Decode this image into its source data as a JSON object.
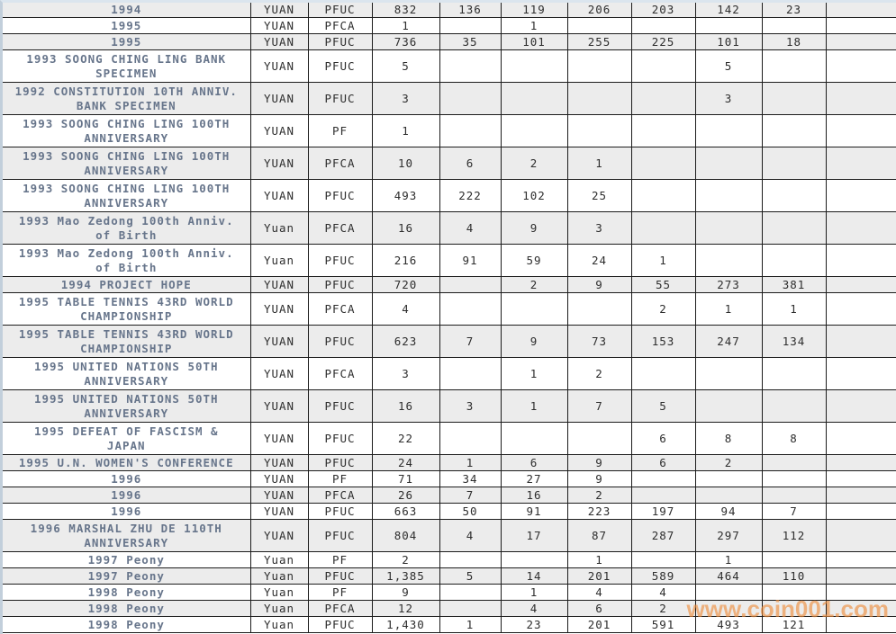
{
  "watermark": {
    "text": "www.coin001.com",
    "color": "#ef8c3a"
  },
  "colors": {
    "row_shade": "#ececec",
    "row_plain": "#ffffff",
    "grid_line": "#1c1c1c",
    "description_text": "#67758b",
    "value_text": "#2e2e2e",
    "edge_highlight": "#c2cfdb"
  },
  "table": {
    "rows": [
      {
        "cells": [
          "1994",
          "YUAN",
          "PFUC",
          "832",
          "136",
          "119",
          "206",
          "203",
          "142",
          "23",
          ""
        ]
      },
      {
        "cells": [
          "1995",
          "YUAN",
          "PFCA",
          "1",
          "",
          "1",
          "",
          "",
          "",
          "",
          ""
        ]
      },
      {
        "cells": [
          "1995",
          "YUAN",
          "PFUC",
          "736",
          "35",
          "101",
          "255",
          "225",
          "101",
          "18",
          ""
        ]
      },
      {
        "cells": [
          [
            "1993 SOONG CHING LING BANK",
            "SPECIMEN"
          ],
          "YUAN",
          "PFUC",
          "5",
          "",
          "",
          "",
          "",
          "5",
          "",
          ""
        ]
      },
      {
        "cells": [
          [
            "1992 CONSTITUTION 10TH ANNIV.",
            "BANK SPECIMEN"
          ],
          "YUAN",
          "PFUC",
          "3",
          "",
          "",
          "",
          "",
          "3",
          "",
          ""
        ]
      },
      {
        "cells": [
          [
            "1993 SOONG CHING LING 100TH",
            "ANNIVERSARY"
          ],
          "YUAN",
          "PF",
          "1",
          "",
          "",
          "",
          "",
          "",
          "",
          ""
        ]
      },
      {
        "cells": [
          [
            "1993 SOONG CHING LING 100TH",
            "ANNIVERSARY"
          ],
          "YUAN",
          "PFCA",
          "10",
          "6",
          "2",
          "1",
          "",
          "",
          "",
          ""
        ]
      },
      {
        "cells": [
          [
            "1993 SOONG CHING LING 100TH",
            "ANNIVERSARY"
          ],
          "YUAN",
          "PFUC",
          "493",
          "222",
          "102",
          "25",
          "",
          "",
          "",
          ""
        ]
      },
      {
        "cells": [
          [
            "1993 Mao Zedong 100th Anniv.",
            "of Birth"
          ],
          "Yuan",
          "PFCA",
          "16",
          "4",
          "9",
          "3",
          "",
          "",
          "",
          ""
        ]
      },
      {
        "cells": [
          [
            "1993 Mao Zedong 100th Anniv.",
            "of Birth"
          ],
          "Yuan",
          "PFUC",
          "216",
          "91",
          "59",
          "24",
          "1",
          "",
          "",
          ""
        ]
      },
      {
        "cells": [
          "1994 PROJECT HOPE",
          "YUAN",
          "PFUC",
          "720",
          "",
          "2",
          "9",
          "55",
          "273",
          "381",
          ""
        ]
      },
      {
        "cells": [
          [
            "1995 TABLE TENNIS 43RD WORLD",
            "CHAMPIONSHIP"
          ],
          "YUAN",
          "PFCA",
          "4",
          "",
          "",
          "",
          "2",
          "1",
          "1",
          ""
        ]
      },
      {
        "cells": [
          [
            "1995 TABLE TENNIS 43RD WORLD",
            "CHAMPIONSHIP"
          ],
          "YUAN",
          "PFUC",
          "623",
          "7",
          "9",
          "73",
          "153",
          "247",
          "134",
          ""
        ]
      },
      {
        "cells": [
          [
            "1995 UNITED NATIONS 50TH",
            "ANNIVERSARY"
          ],
          "YUAN",
          "PFCA",
          "3",
          "",
          "1",
          "2",
          "",
          "",
          "",
          ""
        ]
      },
      {
        "cells": [
          [
            "1995 UNITED NATIONS 50TH",
            "ANNIVERSARY"
          ],
          "YUAN",
          "PFUC",
          "16",
          "3",
          "1",
          "7",
          "5",
          "",
          "",
          ""
        ]
      },
      {
        "cells": [
          [
            "1995 DEFEAT OF FASCISM &",
            "JAPAN"
          ],
          "YUAN",
          "PFUC",
          "22",
          "",
          "",
          "",
          "6",
          "8",
          "8",
          ""
        ]
      },
      {
        "cells": [
          "1995 U.N. WOMEN'S CONFERENCE",
          "YUAN",
          "PFUC",
          "24",
          "1",
          "6",
          "9",
          "6",
          "2",
          "",
          ""
        ]
      },
      {
        "cells": [
          "1996",
          "YUAN",
          "PF",
          "71",
          "34",
          "27",
          "9",
          "",
          "",
          "",
          ""
        ]
      },
      {
        "cells": [
          "1996",
          "YUAN",
          "PFCA",
          "26",
          "7",
          "16",
          "2",
          "",
          "",
          "",
          ""
        ]
      },
      {
        "cells": [
          "1996",
          "YUAN",
          "PFUC",
          "663",
          "50",
          "91",
          "223",
          "197",
          "94",
          "7",
          ""
        ]
      },
      {
        "cells": [
          [
            "1996 MARSHAL ZHU DE 110TH",
            "ANNIVERSARY"
          ],
          "YUAN",
          "PFUC",
          "804",
          "4",
          "17",
          "87",
          "287",
          "297",
          "112",
          ""
        ]
      },
      {
        "cells": [
          "1997 Peony",
          "Yuan",
          "PF",
          "2",
          "",
          "",
          "1",
          "",
          "1",
          "",
          ""
        ]
      },
      {
        "cells": [
          "1997 Peony",
          "Yuan",
          "PFUC",
          "1,385",
          "5",
          "14",
          "201",
          "589",
          "464",
          "110",
          ""
        ]
      },
      {
        "cells": [
          "1998 Peony",
          "Yuan",
          "PF",
          "9",
          "",
          "1",
          "4",
          "4",
          "",
          "",
          ""
        ]
      },
      {
        "cells": [
          "1998 Peony",
          "Yuan",
          "PFCA",
          "12",
          "",
          "4",
          "6",
          "2",
          "",
          "",
          ""
        ]
      },
      {
        "cells": [
          "1998 Peony",
          "Yuan",
          "PFUC",
          "1,430",
          "1",
          "23",
          "201",
          "591",
          "493",
          "121",
          ""
        ]
      }
    ]
  }
}
